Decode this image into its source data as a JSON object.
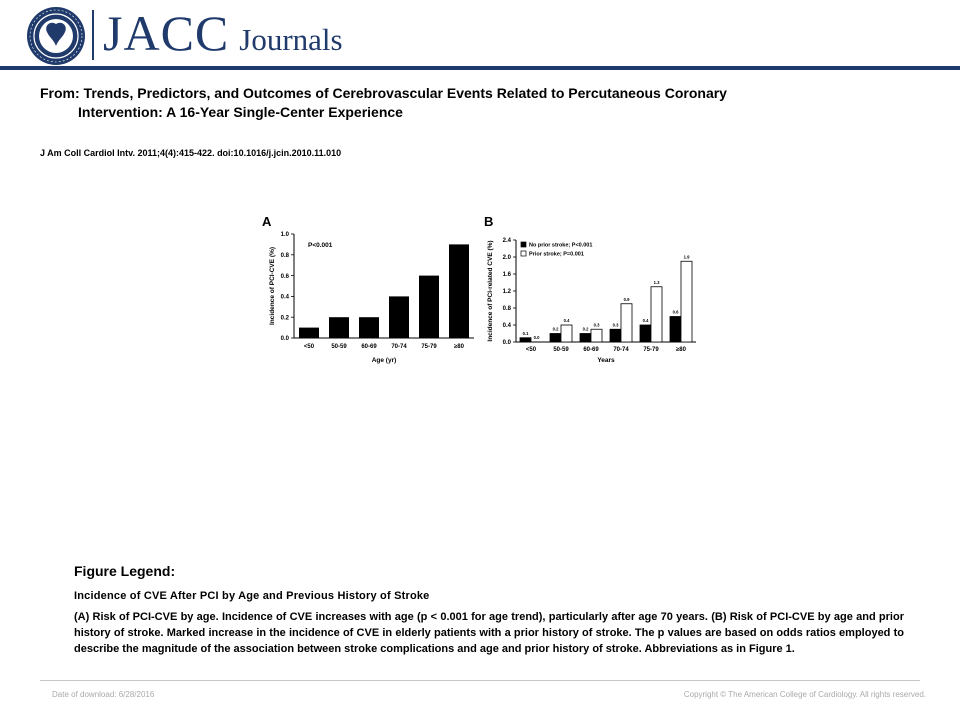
{
  "header": {
    "logo_text": "JACC",
    "logo_subtext": "Journals",
    "brand_color": "#1f3a6b"
  },
  "article": {
    "from_line1": "From: Trends, Predictors, and Outcomes of Cerebrovascular Events Related to Percutaneous Coronary",
    "from_line2": "Intervention: A 16-Year Single-Center Experience",
    "citation": "J Am Coll Cardiol Intv. 2011;4(4):415-422. doi:10.1016/j.jcin.2010.11.010"
  },
  "chart_data": [
    {
      "panel": "A",
      "type": "bar",
      "categories": [
        "<50",
        "50-59",
        "60-69",
        "70-74",
        "75-79",
        "≥80"
      ],
      "values": [
        0.1,
        0.2,
        0.2,
        0.4,
        0.6,
        0.9
      ],
      "ylim": [
        0,
        1.0
      ],
      "yticks": [
        "0.0",
        "0.2",
        "0.4",
        "0.6",
        "0.8",
        "1.0"
      ],
      "xlabel": "Age (yr)",
      "ylabel": "Incidence of PCI-CVE (%)",
      "annotation": "P<0.001",
      "bar_color": "#000000"
    },
    {
      "panel": "B",
      "type": "bar",
      "categories": [
        "<50",
        "50-59",
        "60-69",
        "70-74",
        "75-79",
        "≥80"
      ],
      "series": [
        {
          "name": "No prior stroke; P<0.001",
          "values": [
            0.1,
            0.2,
            0.2,
            0.3,
            0.4,
            0.6
          ],
          "labels": [
            "0.1",
            "0.2",
            "0.2",
            "0.3",
            "0.4",
            "0.6"
          ],
          "fill": "#000000"
        },
        {
          "name": "Prior stroke; P=0.001",
          "values": [
            0.0,
            0.4,
            0.3,
            0.9,
            1.3,
            1.9
          ],
          "labels": [
            "0.0",
            "0.4",
            "0.3",
            "0.9",
            "1.3",
            "1.9"
          ],
          "fill": "#ffffff"
        }
      ],
      "ylim": [
        0,
        2.4
      ],
      "yticks": [
        "0.0",
        "0.4",
        "0.8",
        "1.2",
        "1.6",
        "2.0",
        "2.4"
      ],
      "xlabel": "Years",
      "ylabel": "Incidence of PCI-related CVE (%)",
      "legend": "top-left"
    }
  ],
  "legend": {
    "title": "Figure Legend:",
    "subtitle": "Incidence of CVE After PCI by Age and Previous History of Stroke",
    "body": "(A) Risk of PCI-CVE by age. Incidence of CVE increases with age (p < 0.001 for age trend), particularly after age 70 years. (B) Risk of PCI-CVE by age and prior history of stroke. Marked increase in the incidence of CVE in elderly patients with a prior history of stroke. The p values are based on odds ratios employed to describe the magnitude of the association between stroke complications and age and prior history of stroke. Abbreviations as in Figure 1."
  },
  "footer": {
    "download": "Date of download: 6/28/2016",
    "copyright": "Copyright © The American College of Cardiology. All rights reserved."
  }
}
